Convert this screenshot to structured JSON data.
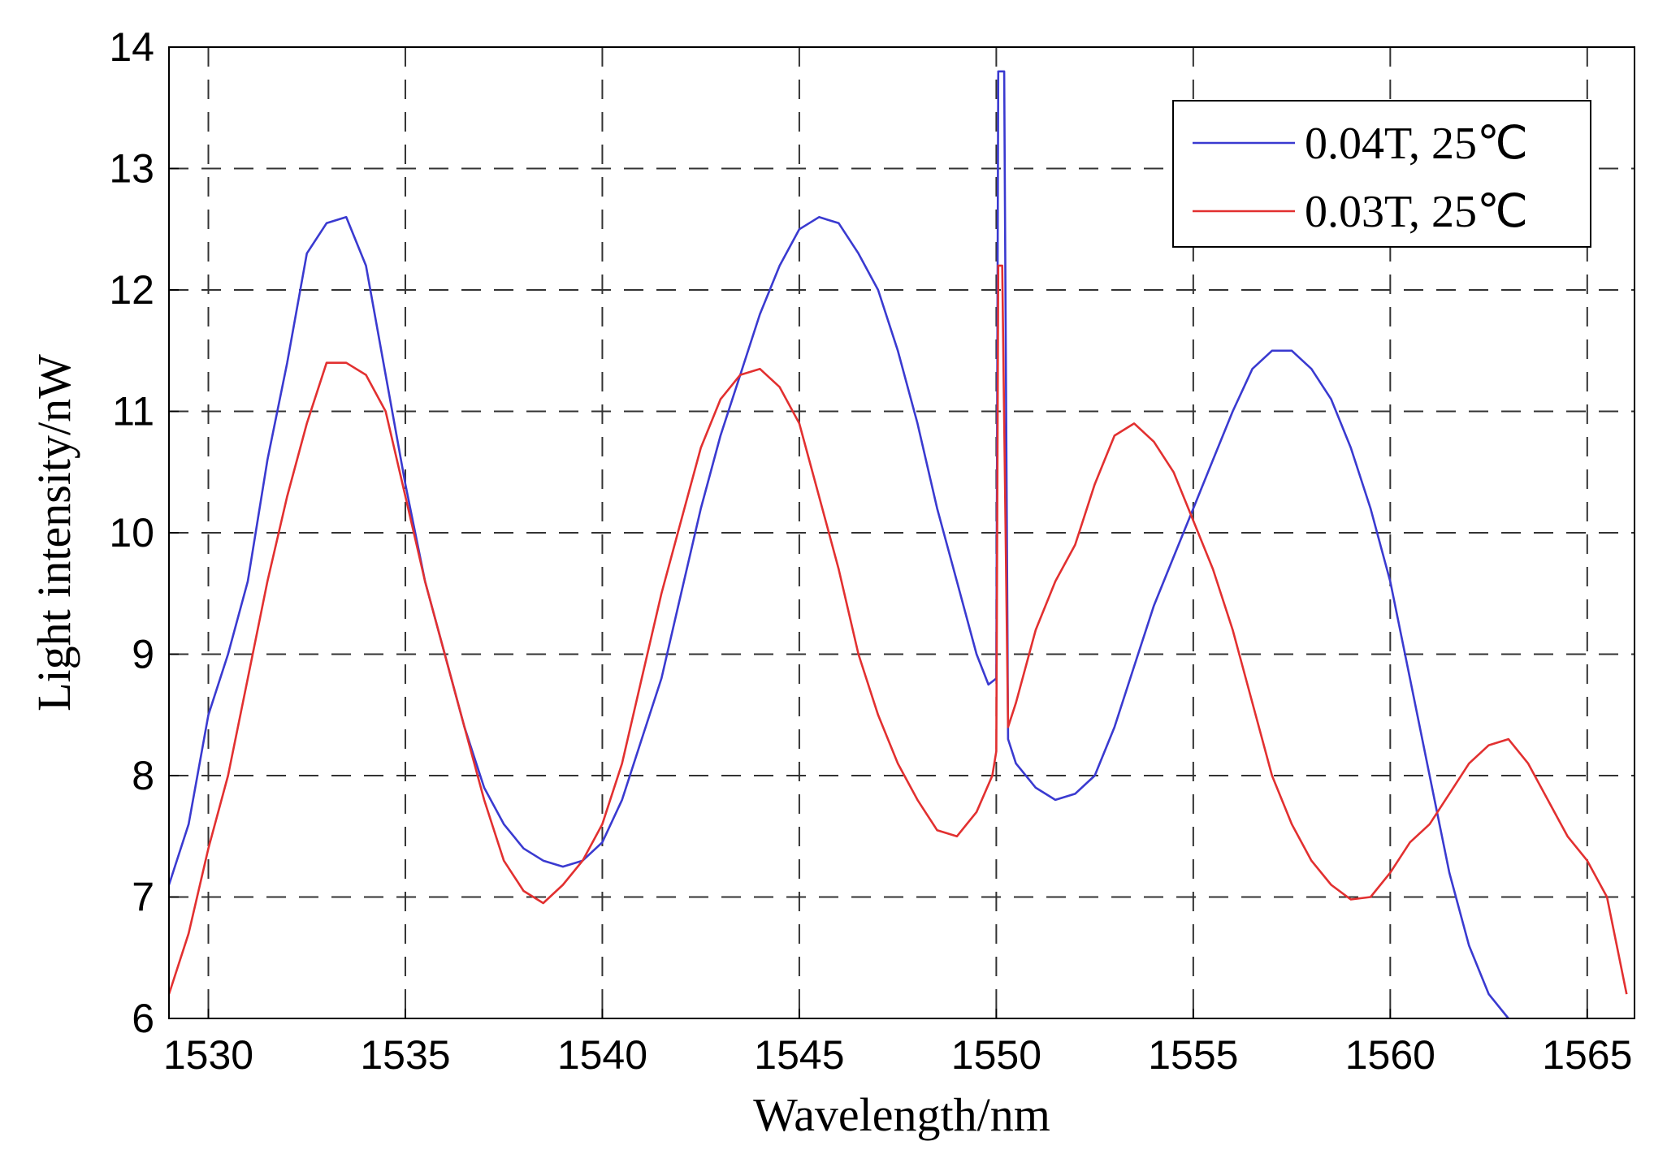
{
  "chart_data": {
    "type": "line",
    "title": "",
    "xlabel": "Wavelength/nm",
    "ylabel": "Light intensity/nW",
    "xlim": [
      1529,
      1566.2
    ],
    "ylim": [
      6,
      14
    ],
    "xticks": [
      1530,
      1535,
      1540,
      1545,
      1550,
      1555,
      1560,
      1565
    ],
    "yticks": [
      6,
      7,
      8,
      9,
      10,
      11,
      12,
      13,
      14
    ],
    "grid": true,
    "legend_position": "top-right",
    "series": [
      {
        "name": "0.04T, 25℃",
        "color": "#3a3ad0",
        "points": [
          [
            1529.0,
            7.1
          ],
          [
            1529.5,
            7.6
          ],
          [
            1530.0,
            8.5
          ],
          [
            1530.5,
            9.0
          ],
          [
            1531.0,
            9.6
          ],
          [
            1531.5,
            10.6
          ],
          [
            1532.0,
            11.4
          ],
          [
            1532.5,
            12.3
          ],
          [
            1533.0,
            12.55
          ],
          [
            1533.5,
            12.6
          ],
          [
            1534.0,
            12.2
          ],
          [
            1534.5,
            11.3
          ],
          [
            1535.0,
            10.4
          ],
          [
            1535.5,
            9.6
          ],
          [
            1536.0,
            9.0
          ],
          [
            1536.5,
            8.4
          ],
          [
            1537.0,
            7.9
          ],
          [
            1537.5,
            7.6
          ],
          [
            1538.0,
            7.4
          ],
          [
            1538.5,
            7.3
          ],
          [
            1539.0,
            7.25
          ],
          [
            1539.5,
            7.3
          ],
          [
            1540.0,
            7.45
          ],
          [
            1540.5,
            7.8
          ],
          [
            1541.0,
            8.3
          ],
          [
            1541.5,
            8.8
          ],
          [
            1542.0,
            9.5
          ],
          [
            1542.5,
            10.2
          ],
          [
            1543.0,
            10.8
          ],
          [
            1543.5,
            11.3
          ],
          [
            1544.0,
            11.8
          ],
          [
            1544.5,
            12.2
          ],
          [
            1545.0,
            12.5
          ],
          [
            1545.5,
            12.6
          ],
          [
            1546.0,
            12.55
          ],
          [
            1546.5,
            12.3
          ],
          [
            1547.0,
            12.0
          ],
          [
            1547.5,
            11.5
          ],
          [
            1548.0,
            10.9
          ],
          [
            1548.5,
            10.2
          ],
          [
            1549.0,
            9.6
          ],
          [
            1549.5,
            9.0
          ],
          [
            1549.8,
            8.75
          ],
          [
            1550.0,
            8.8
          ],
          [
            1550.05,
            13.8
          ],
          [
            1550.2,
            13.8
          ],
          [
            1550.3,
            8.3
          ],
          [
            1550.5,
            8.1
          ],
          [
            1551.0,
            7.9
          ],
          [
            1551.5,
            7.8
          ],
          [
            1552.0,
            7.85
          ],
          [
            1552.5,
            8.0
          ],
          [
            1553.0,
            8.4
          ],
          [
            1553.5,
            8.9
          ],
          [
            1554.0,
            9.4
          ],
          [
            1554.5,
            9.8
          ],
          [
            1555.0,
            10.2
          ],
          [
            1555.5,
            10.6
          ],
          [
            1556.0,
            11.0
          ],
          [
            1556.5,
            11.35
          ],
          [
            1557.0,
            11.5
          ],
          [
            1557.5,
            11.5
          ],
          [
            1558.0,
            11.35
          ],
          [
            1558.5,
            11.1
          ],
          [
            1559.0,
            10.7
          ],
          [
            1559.5,
            10.2
          ],
          [
            1560.0,
            9.6
          ],
          [
            1560.5,
            8.8
          ],
          [
            1561.0,
            8.0
          ],
          [
            1561.5,
            7.2
          ],
          [
            1562.0,
            6.6
          ],
          [
            1562.5,
            6.2
          ],
          [
            1563.0,
            6.0
          ]
        ]
      },
      {
        "name": "0.03T, 25℃",
        "color": "#e23030",
        "points": [
          [
            1529.0,
            6.2
          ],
          [
            1529.5,
            6.7
          ],
          [
            1530.0,
            7.4
          ],
          [
            1530.5,
            8.0
          ],
          [
            1531.0,
            8.8
          ],
          [
            1531.5,
            9.6
          ],
          [
            1532.0,
            10.3
          ],
          [
            1532.5,
            10.9
          ],
          [
            1533.0,
            11.4
          ],
          [
            1533.5,
            11.4
          ],
          [
            1534.0,
            11.3
          ],
          [
            1534.5,
            11.0
          ],
          [
            1535.0,
            10.3
          ],
          [
            1535.5,
            9.6
          ],
          [
            1536.0,
            9.0
          ],
          [
            1536.5,
            8.4
          ],
          [
            1537.0,
            7.8
          ],
          [
            1537.5,
            7.3
          ],
          [
            1538.0,
            7.05
          ],
          [
            1538.5,
            6.95
          ],
          [
            1539.0,
            7.1
          ],
          [
            1539.5,
            7.3
          ],
          [
            1540.0,
            7.6
          ],
          [
            1540.5,
            8.1
          ],
          [
            1541.0,
            8.8
          ],
          [
            1541.5,
            9.5
          ],
          [
            1542.0,
            10.1
          ],
          [
            1542.5,
            10.7
          ],
          [
            1543.0,
            11.1
          ],
          [
            1543.5,
            11.3
          ],
          [
            1544.0,
            11.35
          ],
          [
            1544.5,
            11.2
          ],
          [
            1545.0,
            10.9
          ],
          [
            1545.5,
            10.3
          ],
          [
            1546.0,
            9.7
          ],
          [
            1546.5,
            9.0
          ],
          [
            1547.0,
            8.5
          ],
          [
            1547.5,
            8.1
          ],
          [
            1548.0,
            7.8
          ],
          [
            1548.5,
            7.55
          ],
          [
            1549.0,
            7.5
          ],
          [
            1549.5,
            7.7
          ],
          [
            1549.9,
            8.0
          ],
          [
            1550.0,
            8.2
          ],
          [
            1550.05,
            12.2
          ],
          [
            1550.15,
            12.2
          ],
          [
            1550.3,
            8.4
          ],
          [
            1550.5,
            8.6
          ],
          [
            1551.0,
            9.2
          ],
          [
            1551.5,
            9.6
          ],
          [
            1552.0,
            9.9
          ],
          [
            1552.5,
            10.4
          ],
          [
            1553.0,
            10.8
          ],
          [
            1553.5,
            10.9
          ],
          [
            1554.0,
            10.75
          ],
          [
            1554.5,
            10.5
          ],
          [
            1555.0,
            10.1
          ],
          [
            1555.5,
            9.7
          ],
          [
            1556.0,
            9.2
          ],
          [
            1556.5,
            8.6
          ],
          [
            1557.0,
            8.0
          ],
          [
            1557.5,
            7.6
          ],
          [
            1558.0,
            7.3
          ],
          [
            1558.5,
            7.1
          ],
          [
            1559.0,
            6.98
          ],
          [
            1559.5,
            7.0
          ],
          [
            1560.0,
            7.2
          ],
          [
            1560.5,
            7.45
          ],
          [
            1561.0,
            7.6
          ],
          [
            1561.5,
            7.85
          ],
          [
            1562.0,
            8.1
          ],
          [
            1562.5,
            8.25
          ],
          [
            1563.0,
            8.3
          ],
          [
            1563.5,
            8.1
          ],
          [
            1564.0,
            7.8
          ],
          [
            1564.5,
            7.5
          ],
          [
            1565.0,
            7.3
          ],
          [
            1565.5,
            7.0
          ],
          [
            1566.0,
            6.2
          ]
        ]
      }
    ]
  }
}
